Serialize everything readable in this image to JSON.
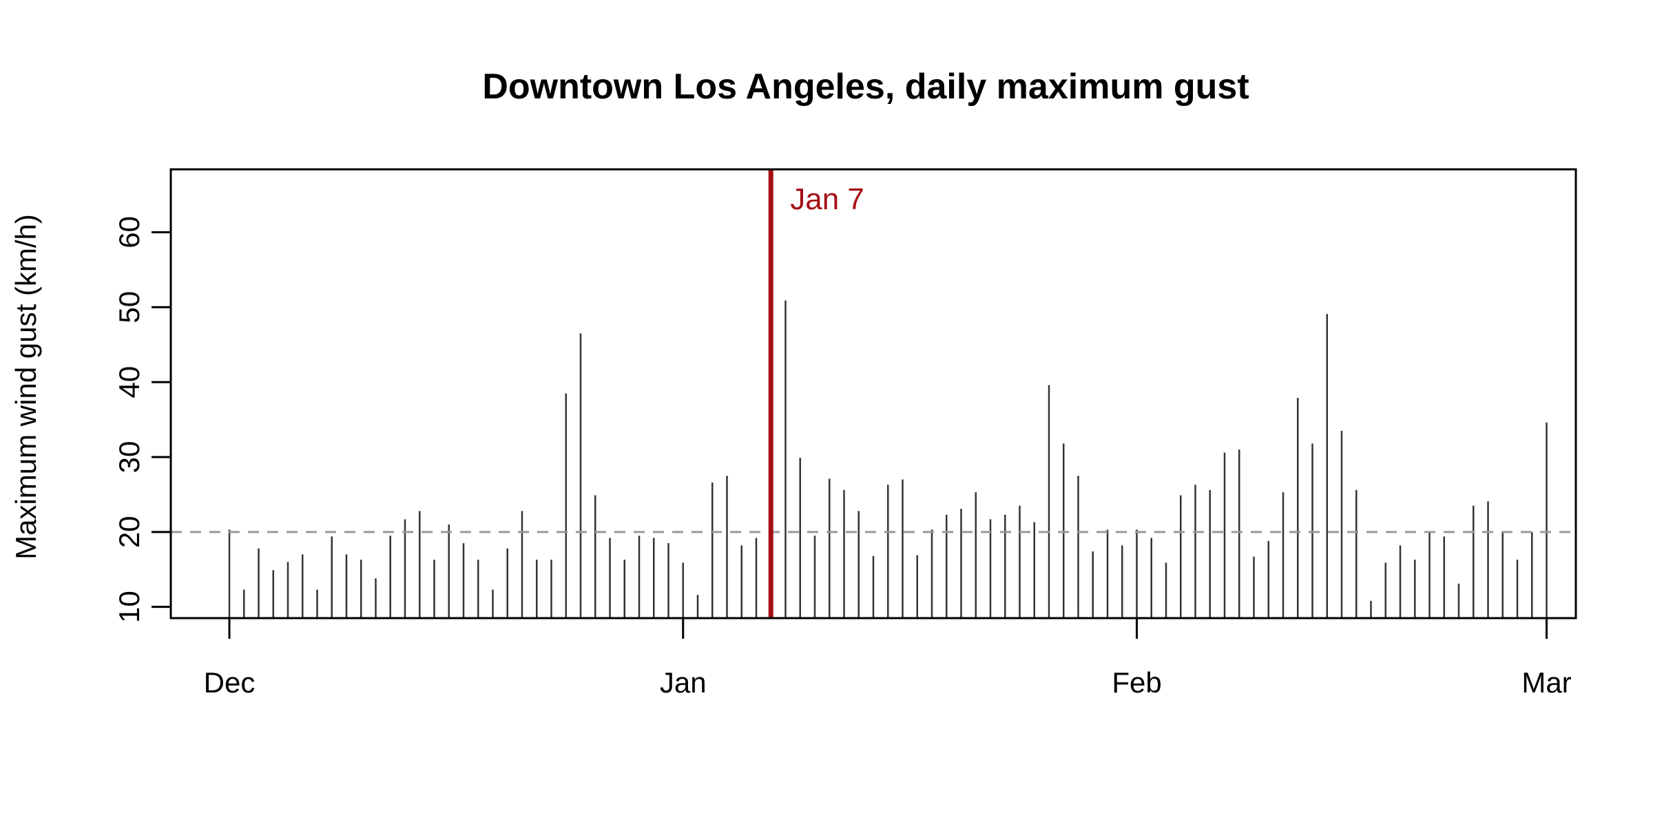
{
  "chart_data": {
    "type": "bar",
    "title": "Downtown Los Angeles, daily maximum gust",
    "ylabel": "Maximum wind gust (km/h)",
    "xlabel": "",
    "xlim": [
      "2024-11-27",
      "2025-03-03"
    ],
    "ylim": [
      8.5,
      68.4
    ],
    "grid": false,
    "x_ticks": [
      {
        "date": "2024-12-01",
        "label": "Dec"
      },
      {
        "date": "2025-01-01",
        "label": "Jan"
      },
      {
        "date": "2025-02-01",
        "label": "Feb"
      },
      {
        "date": "2025-03-01",
        "label": "Mar"
      }
    ],
    "y_ticks": [
      10,
      20,
      30,
      40,
      50,
      60
    ],
    "reference_line": {
      "y": 20,
      "color": "#999999",
      "style": "dashed"
    },
    "event": {
      "date": "2025-01-07",
      "label": "Jan 7",
      "color": "#A50F15"
    },
    "bar_color": "#333333",
    "x_start": "2024-12-01",
    "values": [
      20.3,
      12.3,
      17.8,
      14.9,
      16.0,
      17.0,
      12.3,
      19.4,
      17.0,
      16.3,
      13.8,
      19.5,
      21.7,
      22.8,
      16.3,
      21.0,
      18.5,
      16.3,
      12.3,
      17.8,
      22.8,
      16.3,
      16.3,
      38.5,
      46.5,
      24.9,
      19.2,
      16.3,
      19.5,
      19.2,
      18.5,
      15.9,
      11.6,
      26.6,
      27.5,
      18.2,
      19.2,
      10.0,
      50.9,
      29.9,
      19.5,
      27.1,
      25.6,
      22.8,
      16.8,
      26.3,
      27.0,
      16.9,
      20.3,
      22.3,
      23.1,
      25.3,
      21.7,
      22.3,
      23.5,
      21.3,
      39.6,
      31.8,
      27.5,
      17.4,
      20.3,
      18.2,
      20.3,
      19.2,
      15.9,
      24.9,
      26.3,
      25.6,
      30.6,
      31.0,
      16.7,
      18.8,
      25.3,
      37.9,
      31.8,
      49.1,
      33.5,
      25.6,
      10.8,
      15.9,
      18.2,
      16.3,
      20.0,
      19.4,
      13.1,
      23.5,
      24.1,
      20.0,
      16.3,
      20.0,
      34.6
    ]
  }
}
